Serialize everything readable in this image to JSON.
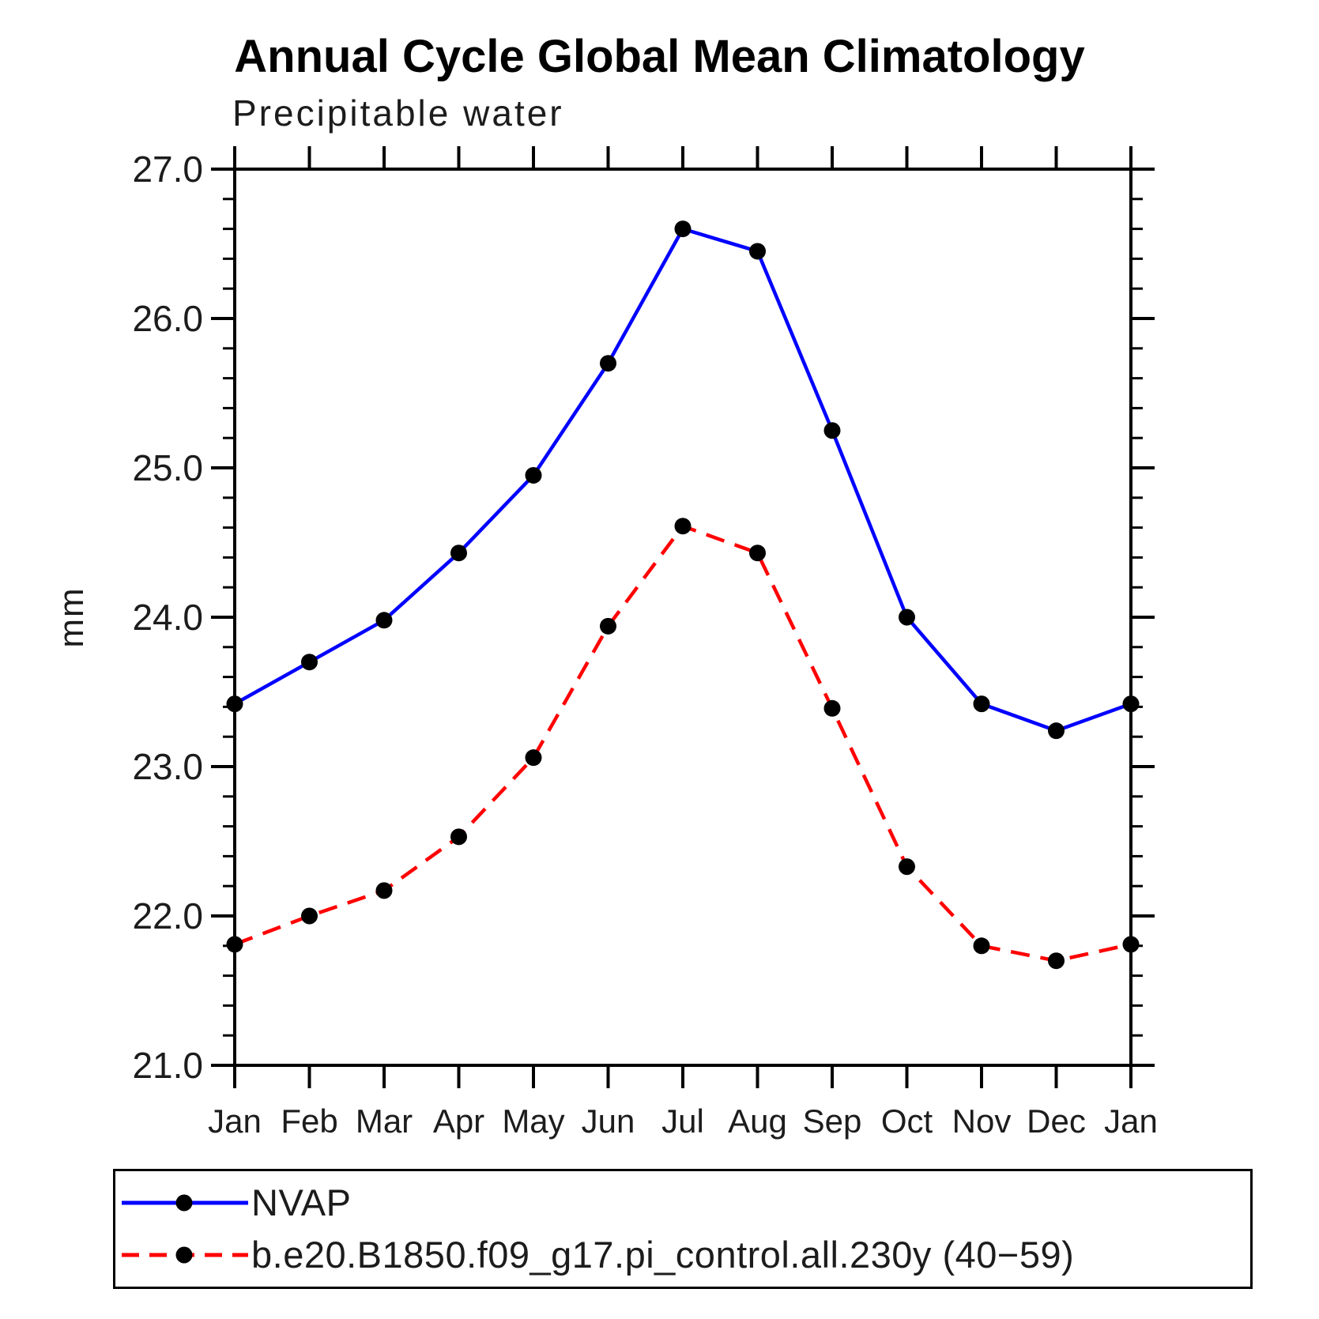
{
  "chart_data": {
    "type": "line",
    "title": "Annual Cycle Global Mean Climatology",
    "subtitle": "Precipitable water",
    "ylabel": "mm",
    "xlabel": "",
    "ylim": [
      21.0,
      27.0
    ],
    "ytick_major": 1.0,
    "ytick_minor": 0.2,
    "grid": false,
    "legend_position": "bottom",
    "axis_color": "#000000",
    "tick_label_color": "#1c1c1c",
    "marker": {
      "shape": "circle",
      "color": "#000000"
    },
    "categories": [
      "Jan",
      "Feb",
      "Mar",
      "Apr",
      "May",
      "Jun",
      "Jul",
      "Aug",
      "Sep",
      "Oct",
      "Nov",
      "Dec",
      "Jan"
    ],
    "y_major_tick_labels": [
      "21.0",
      "22.0",
      "23.0",
      "24.0",
      "25.0",
      "26.0",
      "27.0"
    ],
    "series": [
      {
        "name": "NVAP",
        "color": "#0000ff",
        "line_style": "solid",
        "values": [
          23.42,
          23.7,
          23.98,
          24.43,
          24.95,
          25.7,
          26.6,
          26.45,
          25.25,
          24.0,
          23.42,
          23.24,
          23.42
        ]
      },
      {
        "name": "b.e20.B1850.f09_g17.pi_control.all.230y (40−59)",
        "color": "#ff0000",
        "line_style": "dashed",
        "values": [
          21.81,
          22.0,
          22.17,
          22.53,
          23.06,
          23.94,
          24.61,
          24.43,
          23.39,
          22.33,
          21.8,
          21.7,
          21.81
        ]
      }
    ]
  }
}
